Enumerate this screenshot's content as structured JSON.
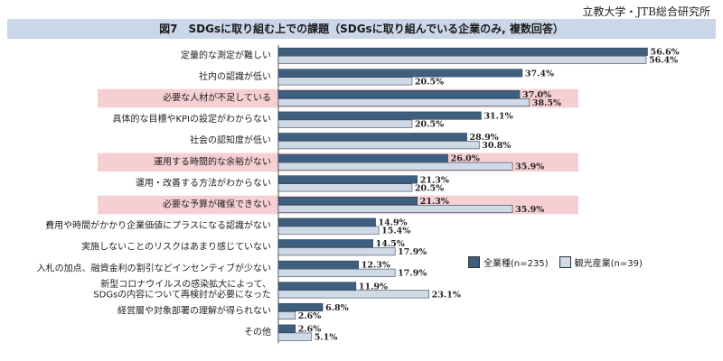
{
  "source": "立教大学・JTB総合研究所",
  "title": "図7　SDGsに取り組む上での課題（SDGsに取り組んでいる企業のみ, 複数回答）",
  "colors": {
    "series1": "#3f5f7f",
    "series2": "#cfdae6",
    "highlight": "#f6cfd3",
    "titlebar": "#c9d7e8"
  },
  "chart_data": {
    "type": "bar",
    "orientation": "horizontal",
    "title": "図7　SDGsに取り組む上での課題（SDGsに取り組んでいる企業のみ, 複数回答）",
    "categories": [
      [
        "定量的な測定が難しい"
      ],
      [
        "社内の認識が低い"
      ],
      [
        "必要な人材が不足している"
      ],
      [
        "具体的な目標やKPIの設定がわからない"
      ],
      [
        "社会の認知度が低い"
      ],
      [
        "運用する時間的な余裕がない"
      ],
      [
        "運用・改善する方法がわからない"
      ],
      [
        "必要な予算が確保できない"
      ],
      [
        "費用や時間がかかり企業価値にプラスになる認識がない"
      ],
      [
        "実施しないことのリスクはあまり感じていない"
      ],
      [
        "入札の加点、融資金利の割引などインセンティブが少ない"
      ],
      [
        "新型コロナウイルスの感染拡大によって、",
        "SDGsの内容について再検討が必要になった"
      ],
      [
        "経営層や対象部署の理解が得られない"
      ],
      [
        "その他"
      ]
    ],
    "highlighted": [
      2,
      5,
      7
    ],
    "series": [
      {
        "name": "全業種(n=235)",
        "values": [
          56.6,
          37.4,
          37.0,
          31.1,
          28.9,
          26.0,
          21.3,
          21.3,
          14.9,
          14.5,
          12.3,
          11.9,
          6.8,
          2.6
        ]
      },
      {
        "name": "観光産業(n=39)",
        "values": [
          56.4,
          20.5,
          38.5,
          20.5,
          30.8,
          35.9,
          20.5,
          35.9,
          15.4,
          17.9,
          17.9,
          23.1,
          2.6,
          5.1
        ]
      }
    ],
    "value_suffix": "%",
    "xlim": [
      0,
      60
    ],
    "legend_position": "right"
  }
}
